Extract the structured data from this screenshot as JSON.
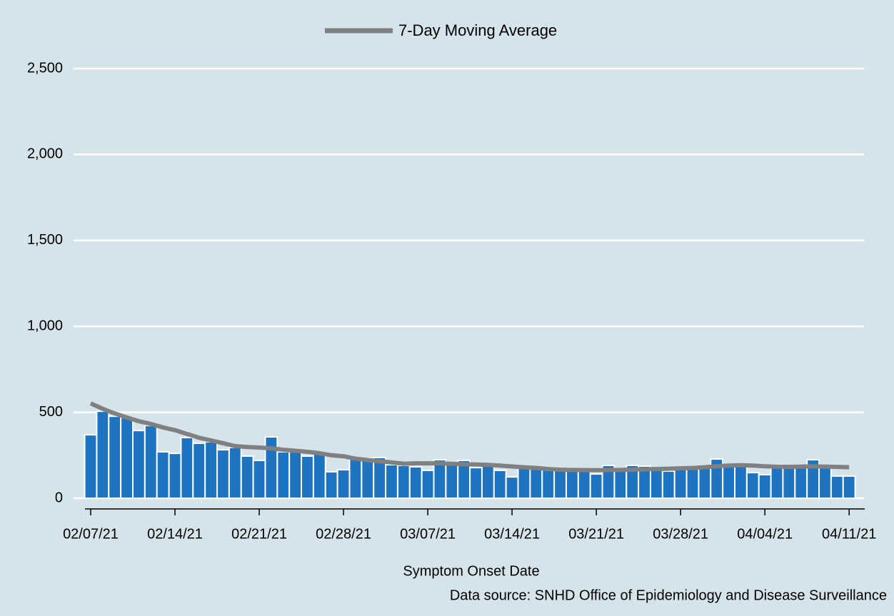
{
  "chart_data": {
    "type": "bar-line",
    "legend_position": "top",
    "x_label": "Symptom Onset Date",
    "source": "Data source: SNHD Office of Epidemiology and Disease Surveillance",
    "categories": [
      "02/07/21",
      null,
      null,
      null,
      null,
      null,
      null,
      "02/14/21",
      null,
      null,
      null,
      null,
      null,
      null,
      "02/21/21",
      null,
      null,
      null,
      null,
      null,
      null,
      "02/28/21",
      null,
      null,
      null,
      null,
      null,
      null,
      "03/07/21",
      null,
      null,
      null,
      null,
      null,
      null,
      "03/14/21",
      null,
      null,
      null,
      null,
      null,
      null,
      "03/21/21",
      null,
      null,
      null,
      null,
      null,
      null,
      "03/28/21",
      null,
      null,
      null,
      null,
      null,
      null,
      "04/04/21",
      null,
      null,
      null,
      null,
      null,
      null,
      "04/11/21"
    ],
    "series": [
      {
        "type": "bar",
        "color": "#1f74c1",
        "values": [
          369,
          506,
          477,
          469,
          394,
          423,
          270,
          261,
          353,
          320,
          328,
          282,
          295,
          245,
          220,
          357,
          270,
          274,
          245,
          261,
          154,
          166,
          228,
          232,
          237,
          195,
          191,
          183,
          162,
          224,
          207,
          220,
          178,
          191,
          162,
          124,
          183,
          178,
          170,
          170,
          162,
          166,
          141,
          191,
          174,
          191,
          187,
          170,
          158,
          174,
          178,
          183,
          228,
          195,
          187,
          149,
          137,
          195,
          187,
          178,
          224,
          183,
          129,
          129
        ]
      },
      {
        "type": "line",
        "name": "7-Day Moving Average",
        "color": "#808080",
        "values": [
          552,
          520,
          493,
          470,
          448,
          432,
          412,
          396,
          374,
          352,
          336,
          320,
          303,
          298,
          295,
          290,
          282,
          276,
          270,
          262,
          250,
          244,
          230,
          222,
          215,
          208,
          201,
          203,
          203,
          203,
          200,
          198,
          196,
          194,
          190,
          185,
          180,
          176,
          170,
          166,
          164,
          164,
          163,
          164,
          165,
          166,
          168,
          170,
          172,
          174,
          176,
          180,
          186,
          190,
          192,
          190,
          186,
          184,
          182,
          184,
          186,
          184,
          182,
          180
        ]
      }
    ],
    "ylim": [
      0,
      2500
    ],
    "yticks": [
      0,
      500,
      {
        "value": 1000,
        "label": "1,000"
      },
      {
        "value": 1500,
        "label": "1,500"
      },
      {
        "value": 2000,
        "label": "2,000"
      },
      {
        "value": 2500,
        "label": "2,500"
      }
    ],
    "grid": true
  }
}
